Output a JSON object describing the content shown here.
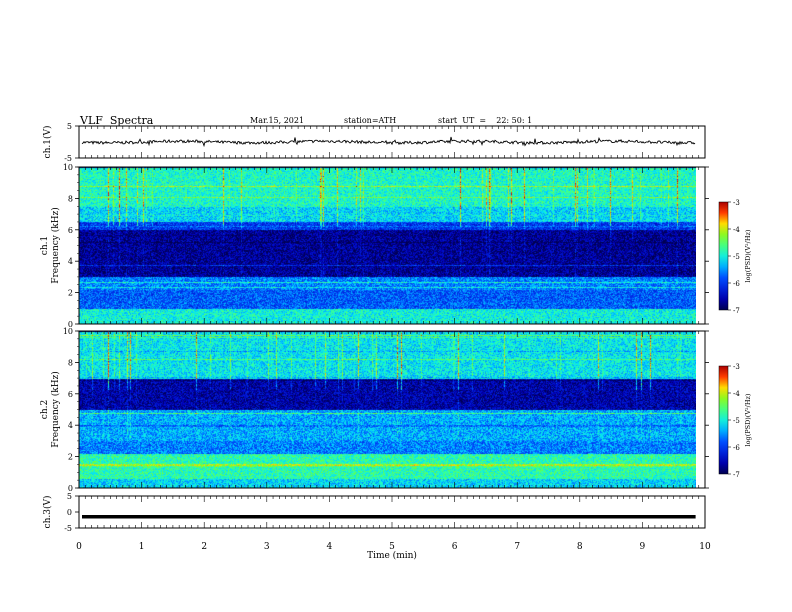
{
  "header": {
    "title": "VLF  Spectra",
    "date": "Mar.15, 2021",
    "station": "station=ATH",
    "start": "start  UT  =    22: 50: 1"
  },
  "chart_data": [
    {
      "type": "line",
      "ylabel": "ch.1(V)",
      "ylim": [
        -5,
        5
      ],
      "yticks": [
        "5",
        "-5"
      ],
      "series": [
        {
          "values_description": "noisy trace near 0 V",
          "mean": 0.0
        }
      ]
    },
    {
      "type": "heatmap",
      "ylabel": "ch.1\nFrequency  (kHz)",
      "ylabel_lines": [
        "ch.1",
        "Frequency  (kHz)"
      ],
      "ylim": [
        0,
        10
      ],
      "yticks": [
        "0",
        "2",
        "4",
        "6",
        "8",
        "10"
      ],
      "colorbar": {
        "label": "log(PSD)(V²/Hz)",
        "range": [
          -7,
          -3
        ],
        "ticks": [
          "-3",
          "-4",
          "-5",
          "-6",
          "-7"
        ]
      },
      "bands": [
        {
          "from": 0,
          "to": 1,
          "level": -5.0
        },
        {
          "from": 1,
          "to": 2.2,
          "level": -5.8
        },
        {
          "from": 2.2,
          "to": 3,
          "level": -5.6
        },
        {
          "from": 3,
          "to": 6,
          "level": -6.7
        },
        {
          "from": 6,
          "to": 6.5,
          "level": -6.0
        },
        {
          "from": 6.5,
          "to": 7.5,
          "level": -5.2
        },
        {
          "from": 7.5,
          "to": 10,
          "level": -4.9
        }
      ]
    },
    {
      "type": "heatmap",
      "ylabel": "ch.2\nFrequency  (kHz)",
      "ylabel_lines": [
        "ch.2",
        "Frequency  (kHz)"
      ],
      "ylim": [
        0,
        10
      ],
      "yticks": [
        "0",
        "2",
        "4",
        "6",
        "8",
        "10"
      ],
      "colorbar": {
        "label": "log(PSD)(V²/Hz)",
        "range": [
          -7,
          -3
        ],
        "ticks": [
          "-3",
          "-4",
          "-5",
          "-6",
          "-7"
        ]
      },
      "bands": [
        {
          "from": 0,
          "to": 0.6,
          "level": -5.2
        },
        {
          "from": 0.6,
          "to": 2.2,
          "level": -4.8
        },
        {
          "from": 2.2,
          "to": 3,
          "level": -5.6
        },
        {
          "from": 3,
          "to": 5,
          "level": -5.4
        },
        {
          "from": 5,
          "to": 7,
          "level": -6.6
        },
        {
          "from": 7,
          "to": 10,
          "level": -5.1
        }
      ]
    },
    {
      "type": "line",
      "ylabel": "ch.3(V)",
      "ylim": [
        -5,
        5
      ],
      "yticks": [
        "5",
        "0",
        "-5"
      ],
      "series": [
        {
          "values_description": "flat thick trace at -1.5 V",
          "mean": -1.5
        }
      ]
    }
  ],
  "xaxis": {
    "label": "Time  (min)",
    "range": [
      0,
      10
    ],
    "ticks": [
      "0",
      "1",
      "2",
      "3",
      "4",
      "5",
      "6",
      "7",
      "8",
      "9",
      "10"
    ],
    "data_end": 9.85
  }
}
